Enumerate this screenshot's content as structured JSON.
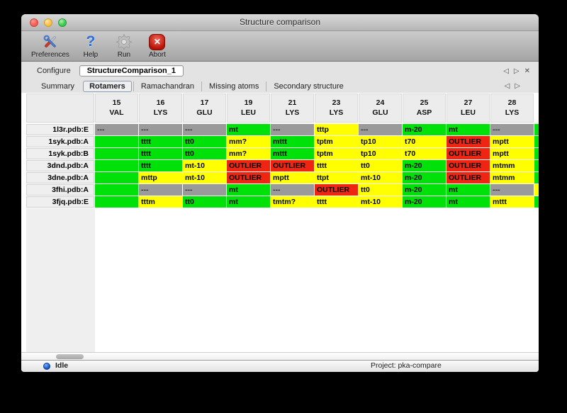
{
  "window": {
    "title": "Structure comparison"
  },
  "window_controls": [
    {
      "name": "close-button",
      "color": "red"
    },
    {
      "name": "minimize-button",
      "color": "yellow"
    },
    {
      "name": "zoom-button",
      "color": "green"
    }
  ],
  "toolbar": {
    "items": [
      {
        "label": "Preferences",
        "icon": "tools-icon"
      },
      {
        "label": "Help",
        "icon": "help-icon"
      },
      {
        "label": "Run",
        "icon": "gear-icon"
      },
      {
        "label": "Abort",
        "icon": "abort-icon"
      }
    ]
  },
  "configure": {
    "label": "Configure",
    "value": "StructureComparison_1",
    "nav": [
      {
        "name": "nav-prev-icon",
        "glyph": "◁"
      },
      {
        "name": "nav-next-icon",
        "glyph": "▷"
      },
      {
        "name": "close-tab-icon",
        "glyph": "✕"
      }
    ]
  },
  "tabs": {
    "items": [
      "Summary",
      "Rotamers",
      "Ramachandran",
      "Missing atoms",
      "Secondary structure"
    ],
    "selected": "Rotamers",
    "nav": [
      {
        "name": "tabs-prev-icon",
        "glyph": "◁"
      },
      {
        "name": "tabs-next-icon",
        "glyph": "▷"
      }
    ]
  },
  "table": {
    "columns": [
      {
        "num": "15",
        "res": "VAL"
      },
      {
        "num": "16",
        "res": "LYS"
      },
      {
        "num": "17",
        "res": "GLU"
      },
      {
        "num": "19",
        "res": "LEU"
      },
      {
        "num": "21",
        "res": "LYS"
      },
      {
        "num": "23",
        "res": "LYS"
      },
      {
        "num": "24",
        "res": "GLU"
      },
      {
        "num": "25",
        "res": "ASP"
      },
      {
        "num": "27",
        "res": "LEU"
      },
      {
        "num": "28",
        "res": "LYS"
      }
    ],
    "rows": [
      {
        "label": "1l3r.pdb:E",
        "edge": "ok",
        "cells": [
          {
            "text": "---",
            "status": "missing"
          },
          {
            "text": "---",
            "status": "missing"
          },
          {
            "text": "---",
            "status": "missing"
          },
          {
            "text": "mt",
            "status": "ok"
          },
          {
            "text": "---",
            "status": "missing"
          },
          {
            "text": "tttp",
            "status": "warn"
          },
          {
            "text": "---",
            "status": "missing"
          },
          {
            "text": "m-20",
            "status": "ok"
          },
          {
            "text": "mt",
            "status": "ok"
          },
          {
            "text": "---",
            "status": "missing"
          }
        ]
      },
      {
        "label": "1syk.pdb:A",
        "edge": "ok",
        "cells": [
          {
            "text": "",
            "status": "ok"
          },
          {
            "text": "tttt",
            "status": "ok"
          },
          {
            "text": "tt0",
            "status": "ok"
          },
          {
            "text": "mm?",
            "status": "warn"
          },
          {
            "text": "mttt",
            "status": "ok"
          },
          {
            "text": "tptm",
            "status": "warn"
          },
          {
            "text": "tp10",
            "status": "warn"
          },
          {
            "text": "t70",
            "status": "warn"
          },
          {
            "text": "OUTLIER",
            "status": "outlier"
          },
          {
            "text": "mptt",
            "status": "warn"
          }
        ]
      },
      {
        "label": "1syk.pdb:B",
        "edge": "ok",
        "cells": [
          {
            "text": "",
            "status": "ok"
          },
          {
            "text": "tttt",
            "status": "ok"
          },
          {
            "text": "tt0",
            "status": "ok"
          },
          {
            "text": "mm?",
            "status": "warn"
          },
          {
            "text": "mttt",
            "status": "ok"
          },
          {
            "text": "tptm",
            "status": "warn"
          },
          {
            "text": "tp10",
            "status": "warn"
          },
          {
            "text": "t70",
            "status": "warn"
          },
          {
            "text": "OUTLIER",
            "status": "outlier"
          },
          {
            "text": "mptt",
            "status": "warn"
          }
        ]
      },
      {
        "label": "3dnd.pdb:A",
        "edge": "ok",
        "cells": [
          {
            "text": "",
            "status": "ok"
          },
          {
            "text": "tttt",
            "status": "ok"
          },
          {
            "text": "mt-10",
            "status": "warn"
          },
          {
            "text": "OUTLIER",
            "status": "outlier"
          },
          {
            "text": "OUTLIER",
            "status": "outlier"
          },
          {
            "text": "tttt",
            "status": "warn"
          },
          {
            "text": "tt0",
            "status": "warn"
          },
          {
            "text": "m-20",
            "status": "ok"
          },
          {
            "text": "OUTLIER",
            "status": "outlier"
          },
          {
            "text": "mtmm",
            "status": "warn"
          }
        ]
      },
      {
        "label": "3dne.pdb:A",
        "edge": "ok",
        "cells": [
          {
            "text": "",
            "status": "ok"
          },
          {
            "text": "mttp",
            "status": "warn"
          },
          {
            "text": "mt-10",
            "status": "warn"
          },
          {
            "text": "OUTLIER",
            "status": "outlier"
          },
          {
            "text": "mptt",
            "status": "warn"
          },
          {
            "text": "ttpt",
            "status": "warn"
          },
          {
            "text": "mt-10",
            "status": "warn"
          },
          {
            "text": "m-20",
            "status": "ok"
          },
          {
            "text": "OUTLIER",
            "status": "outlier"
          },
          {
            "text": "mtmm",
            "status": "warn"
          }
        ]
      },
      {
        "label": "3fhi.pdb:A",
        "edge": "warn",
        "cells": [
          {
            "text": "",
            "status": "ok"
          },
          {
            "text": "---",
            "status": "missing"
          },
          {
            "text": "---",
            "status": "missing"
          },
          {
            "text": "mt",
            "status": "ok"
          },
          {
            "text": "---",
            "status": "missing"
          },
          {
            "text": "OUTLIER",
            "status": "outlier"
          },
          {
            "text": "tt0",
            "status": "warn"
          },
          {
            "text": "m-20",
            "status": "ok"
          },
          {
            "text": "mt",
            "status": "ok"
          },
          {
            "text": "---",
            "status": "missing"
          }
        ]
      },
      {
        "label": "3fjq.pdb:E",
        "edge": "ok",
        "cells": [
          {
            "text": "",
            "status": "ok"
          },
          {
            "text": "tttm",
            "status": "warn"
          },
          {
            "text": "tt0",
            "status": "ok"
          },
          {
            "text": "mt",
            "status": "ok"
          },
          {
            "text": "tmtm?",
            "status": "warn"
          },
          {
            "text": "tttt",
            "status": "warn"
          },
          {
            "text": "mt-10",
            "status": "warn"
          },
          {
            "text": "m-20",
            "status": "ok"
          },
          {
            "text": "mt",
            "status": "ok"
          },
          {
            "text": "mttt",
            "status": "warn"
          }
        ]
      }
    ]
  },
  "statusbar": {
    "state": "Idle",
    "project": "Project: pka-compare"
  },
  "colors": {
    "ok": "#00e10a",
    "warn": "#ffff00",
    "outlier": "#ee2512",
    "missing": "#9a9a9a"
  }
}
